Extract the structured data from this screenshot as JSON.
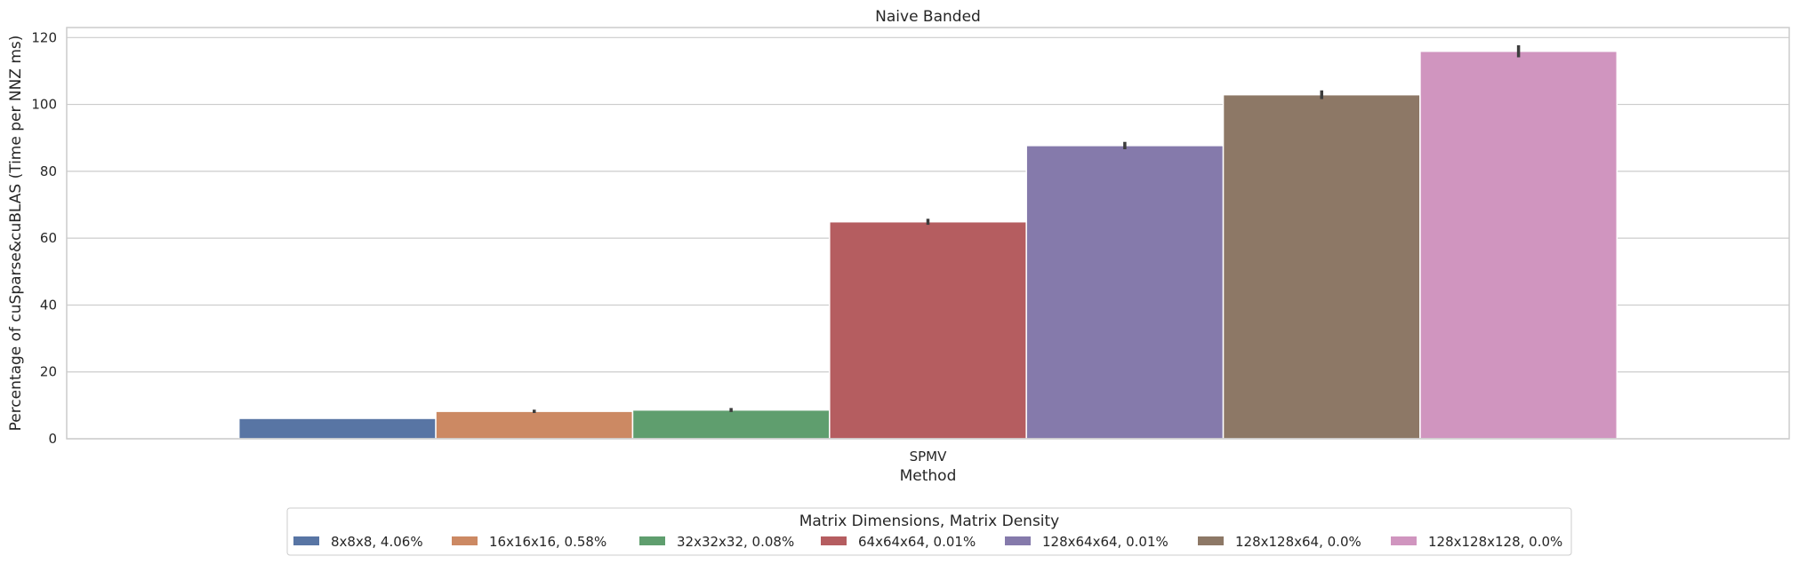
{
  "chart_data": {
    "type": "bar",
    "title": "Naive Banded",
    "xlabel": "Method",
    "ylabel": "Percentage of cuSparse&cuBLAS (Time per NNZ ms)",
    "categories": [
      "SPMV"
    ],
    "ylim": [
      0,
      123
    ],
    "yticks": [
      0,
      20,
      40,
      60,
      80,
      100,
      120
    ],
    "grid": true,
    "legend": {
      "title": "Matrix Dimensions, Matrix Density",
      "placement": "bottom-center"
    },
    "series": [
      {
        "name": "8x8x8, 4.06%",
        "values": [
          6.1
        ],
        "error": [
          0.0
        ],
        "color": "#5875a4"
      },
      {
        "name": "16x16x16, 0.58%",
        "values": [
          8.2
        ],
        "error": [
          0.5
        ],
        "color": "#cc8963"
      },
      {
        "name": "32x32x32, 0.08%",
        "values": [
          8.6
        ],
        "error": [
          0.6
        ],
        "color": "#5f9e6e"
      },
      {
        "name": "64x64x64, 0.01%",
        "values": [
          64.9
        ],
        "error": [
          0.9
        ],
        "color": "#b55d60"
      },
      {
        "name": "128x64x64, 0.01%",
        "values": [
          87.7
        ],
        "error": [
          1.1
        ],
        "color": "#857aab"
      },
      {
        "name": "128x128x64, 0.0%",
        "values": [
          102.9
        ],
        "error": [
          1.3
        ],
        "color": "#8d7866"
      },
      {
        "name": "128x128x128, 0.0%",
        "values": [
          115.9
        ],
        "error": [
          1.8
        ],
        "color": "#d095bf"
      }
    ]
  }
}
